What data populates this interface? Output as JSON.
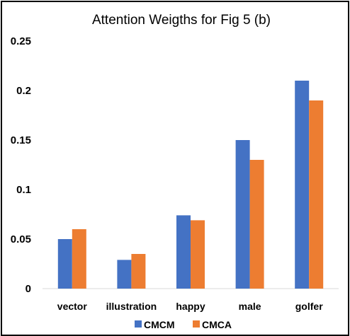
{
  "chart_data": {
    "type": "bar",
    "title": "Attention Weigths for Fig 5 (b)",
    "categories": [
      "vector",
      "illustration",
      "happy",
      "male",
      "golfer"
    ],
    "series": [
      {
        "name": "CMCM",
        "values": [
          0.05,
          0.029,
          0.074,
          0.15,
          0.21
        ],
        "color": "#4472C4"
      },
      {
        "name": "CMCA",
        "values": [
          0.06,
          0.035,
          0.069,
          0.13,
          0.19
        ],
        "color": "#ED7D31"
      }
    ],
    "yticks": [
      "0",
      "0.05",
      "0.1",
      "0.15",
      "0.2",
      "0.25"
    ],
    "ylim": [
      0,
      0.25
    ],
    "grid": false,
    "legend": "bottom"
  }
}
